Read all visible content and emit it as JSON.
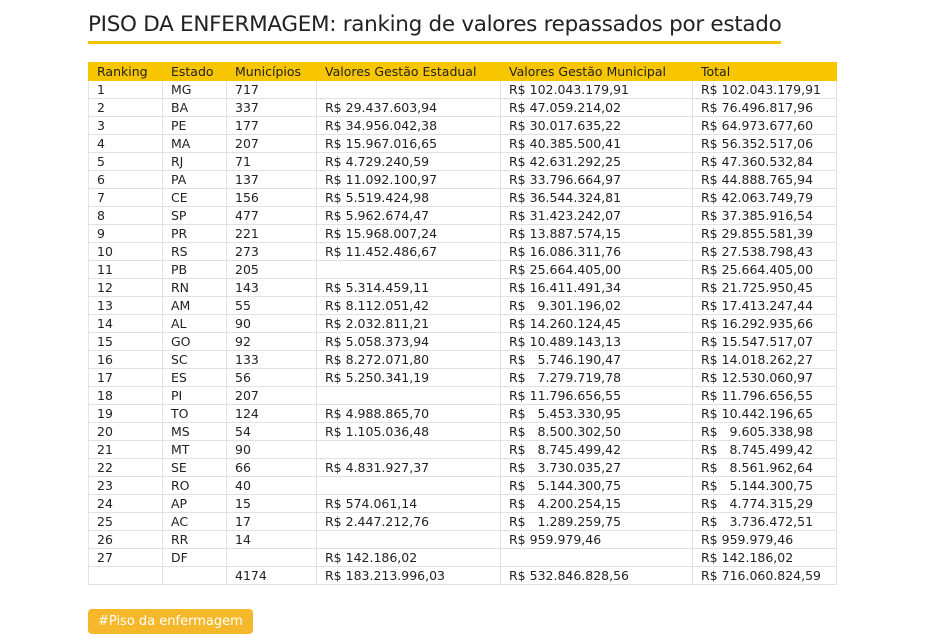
{
  "header": {
    "title": "PISO DA ENFERMAGEM: ranking de valores repassados por estado"
  },
  "table": {
    "columns": [
      "Ranking",
      "Estado",
      "Municípios",
      "Valores Gestão Estadual",
      "Valores Gestão Municipal",
      "Total"
    ],
    "rows": [
      [
        "1",
        "MG",
        "717",
        null,
        "R$ 102.043.179,91",
        "R$ 102.043.179,91"
      ],
      [
        "2",
        "BA",
        "337",
        "R$ 29.437.603,94",
        "R$ 47.059.214,02",
        "R$ 76.496.817,96"
      ],
      [
        "3",
        "PE",
        "177",
        "R$ 34.956.042,38",
        "R$ 30.017.635,22",
        "R$ 64.973.677,60"
      ],
      [
        "4",
        "MA",
        "207",
        "R$ 15.967.016,65",
        "R$ 40.385.500,41",
        "R$ 56.352.517,06"
      ],
      [
        "5",
        "RJ",
        "71",
        "R$ 4.729.240,59",
        "R$ 42.631.292,25",
        "R$ 47.360.532,84"
      ],
      [
        "6",
        "PA",
        "137",
        "R$ 11.092.100,97",
        "R$ 33.796.664,97",
        "R$ 44.888.765,94"
      ],
      [
        "7",
        "CE",
        "156",
        "R$ 5.519.424,98",
        "R$ 36.544.324,81",
        "R$ 42.063.749,79"
      ],
      [
        "8",
        "SP",
        "477",
        "R$ 5.962.674,47",
        "R$ 31.423.242,07",
        "R$ 37.385.916,54"
      ],
      [
        "9",
        "PR",
        "221",
        "R$ 15.968.007,24",
        "R$ 13.887.574,15",
        "R$ 29.855.581,39"
      ],
      [
        "10",
        "RS",
        "273",
        "R$ 11.452.486,67",
        "R$ 16.086.311,76",
        "R$ 27.538.798,43"
      ],
      [
        "11",
        "PB",
        "205",
        null,
        "R$ 25.664.405,00",
        "R$ 25.664.405,00"
      ],
      [
        "12",
        "RN",
        "143",
        "R$ 5.314.459,11",
        "R$ 16.411.491,34",
        "R$ 21.725.950,45"
      ],
      [
        "13",
        "AM",
        "55",
        "R$ 8.112.051,42",
        "R$   9.301.196,02",
        "R$ 17.413.247,44"
      ],
      [
        "14",
        "AL",
        "90",
        "R$ 2.032.811,21",
        "R$ 14.260.124,45",
        "R$ 16.292.935,66"
      ],
      [
        "15",
        "GO",
        "92",
        "R$ 5.058.373,94",
        "R$ 10.489.143,13",
        "R$ 15.547.517,07"
      ],
      [
        "16",
        "SC",
        "133",
        "R$ 8.272.071,80",
        "R$   5.746.190,47",
        "R$ 14.018.262,27"
      ],
      [
        "17",
        "ES",
        "56",
        "R$ 5.250.341,19",
        "R$   7.279.719,78",
        "R$ 12.530.060,97"
      ],
      [
        "18",
        "PI",
        "207",
        null,
        "R$ 11.796.656,55",
        "R$ 11.796.656,55"
      ],
      [
        "19",
        "TO",
        "124",
        "R$ 4.988.865,70",
        "R$   5.453.330,95",
        "R$ 10.442.196,65"
      ],
      [
        "20",
        "MS",
        "54",
        "R$ 1.105.036,48",
        "R$   8.500.302,50",
        "R$   9.605.338,98"
      ],
      [
        "21",
        "MT",
        "90",
        null,
        "R$   8.745.499,42",
        "R$   8.745.499,42"
      ],
      [
        "22",
        "SE",
        "66",
        "R$ 4.831.927,37",
        "R$   3.730.035,27",
        "R$   8.561.962,64"
      ],
      [
        "23",
        "RO",
        "40",
        null,
        "R$   5.144.300,75",
        "R$   5.144.300,75"
      ],
      [
        "24",
        "AP",
        "15",
        "R$ 574.061,14",
        "R$   4.200.254,15",
        "R$   4.774.315,29"
      ],
      [
        "25",
        "AC",
        "17",
        "R$ 2.447.212,76",
        "R$   1.289.259,75",
        "R$   3.736.472,51"
      ],
      [
        "26",
        "RR",
        "14",
        null,
        "R$ 959.979,46",
        "R$ 959.979,46"
      ],
      [
        "27",
        "DF",
        null,
        "R$ 142.186,02",
        null,
        "R$ 142.186,02"
      ]
    ],
    "total_row": [
      null,
      null,
      "4174",
      "R$ 183.213.996,03",
      "R$ 532.846.828,56",
      "R$ 716.060.824,59"
    ]
  },
  "tag": "#Piso da enfermagem"
}
